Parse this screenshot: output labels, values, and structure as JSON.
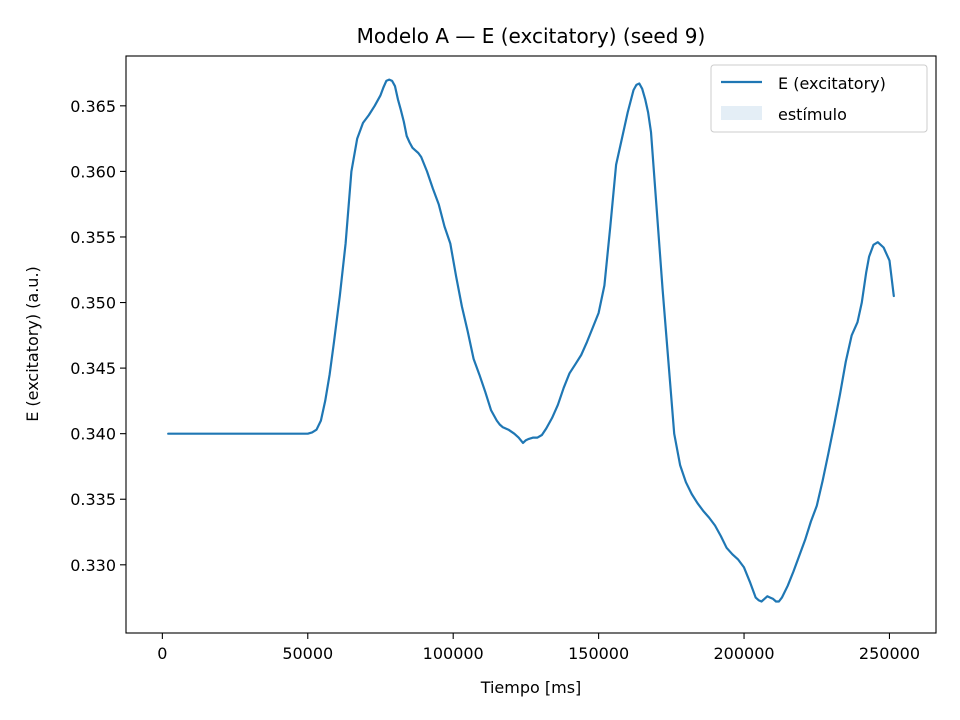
{
  "chart_data": {
    "type": "line",
    "title": "Modelo A — E (excitatory) (seed 9)",
    "xlabel": "Tiempo [ms]",
    "ylabel": "E (excitatory) (a.u.)",
    "xlim": [
      -12500,
      266000
    ],
    "ylim": [
      0.3248,
      0.3688
    ],
    "xticks": [
      0,
      50000,
      100000,
      150000,
      200000,
      250000
    ],
    "xtick_labels": [
      "0",
      "50000",
      "100000",
      "150000",
      "200000",
      "250000"
    ],
    "yticks": [
      0.33,
      0.335,
      0.34,
      0.345,
      0.35,
      0.355,
      0.36,
      0.365
    ],
    "ytick_labels": [
      "0.330",
      "0.335",
      "0.340",
      "0.345",
      "0.350",
      "0.355",
      "0.360",
      "0.365"
    ],
    "grid": false,
    "legend": {
      "location": "top-right",
      "entries": [
        {
          "label": "E (excitatory)",
          "kind": "line",
          "color": "#1f77b4"
        },
        {
          "label": "estímulo",
          "kind": "patch",
          "color": "#1f77b4",
          "opacity": 0.12
        }
      ]
    },
    "series": [
      {
        "name": "E (excitatory)",
        "color": "#1f77b4",
        "x": [
          2000,
          10000,
          20000,
          30000,
          40000,
          50000,
          51500,
          53000,
          54500,
          56000,
          57500,
          59000,
          61000,
          63000,
          65000,
          67000,
          69000,
          71000,
          73000,
          75000,
          76000,
          77000,
          78000,
          79000,
          80000,
          81000,
          82000,
          83000,
          84000,
          85000,
          86000,
          87000,
          88000,
          89000,
          91000,
          93000,
          95000,
          97000,
          99000,
          101000,
          103000,
          105000,
          107000,
          109000,
          111000,
          113000,
          115000,
          116000,
          117000,
          119000,
          121000,
          122500,
          124000,
          125000,
          126000,
          127500,
          129000,
          130500,
          132000,
          134000,
          136000,
          138000,
          140000,
          142000,
          144000,
          146000,
          148000,
          150000,
          152000,
          154000,
          156000,
          158000,
          160000,
          162000,
          163000,
          164000,
          165000,
          166000,
          167000,
          168000,
          170000,
          172000,
          174000,
          176000,
          178000,
          180000,
          182000,
          184000,
          186000,
          188000,
          190000,
          192000,
          194000,
          196000,
          198000,
          200000,
          202000,
          204000,
          205000,
          206000,
          207000,
          208000,
          209000,
          210000,
          211000,
          212000,
          213000,
          215000,
          217000,
          219000,
          221000,
          223000,
          225000,
          227000,
          229000,
          231000,
          233000,
          235000,
          237000,
          239000,
          240500,
          242000,
          243000,
          244500,
          246000,
          248000,
          250000,
          251500
        ],
        "values": [
          0.34,
          0.34,
          0.34,
          0.34,
          0.34,
          0.34,
          0.3401,
          0.3403,
          0.341,
          0.3425,
          0.3445,
          0.347,
          0.3505,
          0.3545,
          0.36,
          0.3625,
          0.3637,
          0.3643,
          0.365,
          0.3658,
          0.3664,
          0.3669,
          0.367,
          0.3669,
          0.3665,
          0.3655,
          0.3647,
          0.3638,
          0.3627,
          0.3622,
          0.3618,
          0.3616,
          0.3614,
          0.3611,
          0.36,
          0.3587,
          0.3575,
          0.3558,
          0.3545,
          0.352,
          0.3497,
          0.3478,
          0.3457,
          0.3445,
          0.3432,
          0.3418,
          0.341,
          0.3407,
          0.3405,
          0.3403,
          0.34,
          0.3397,
          0.3393,
          0.3395,
          0.3396,
          0.3397,
          0.3397,
          0.3399,
          0.3404,
          0.3412,
          0.3422,
          0.3435,
          0.3446,
          0.3453,
          0.346,
          0.347,
          0.3481,
          0.3492,
          0.3513,
          0.3558,
          0.3605,
          0.3625,
          0.3645,
          0.3662,
          0.3666,
          0.3667,
          0.3663,
          0.3655,
          0.3645,
          0.363,
          0.357,
          0.351,
          0.3455,
          0.34,
          0.3376,
          0.3363,
          0.3354,
          0.3347,
          0.3341,
          0.3336,
          0.333,
          0.3322,
          0.3313,
          0.3308,
          0.3304,
          0.3298,
          0.3287,
          0.3275,
          0.3273,
          0.3272,
          0.3274,
          0.3276,
          0.3275,
          0.3274,
          0.3272,
          0.3272,
          0.3275,
          0.3284,
          0.3295,
          0.3307,
          0.3319,
          0.3333,
          0.3345,
          0.3364,
          0.3385,
          0.3407,
          0.343,
          0.3455,
          0.3475,
          0.3485,
          0.35,
          0.3523,
          0.3535,
          0.3544,
          0.3546,
          0.3542,
          0.3532,
          0.3505
        ]
      }
    ]
  }
}
